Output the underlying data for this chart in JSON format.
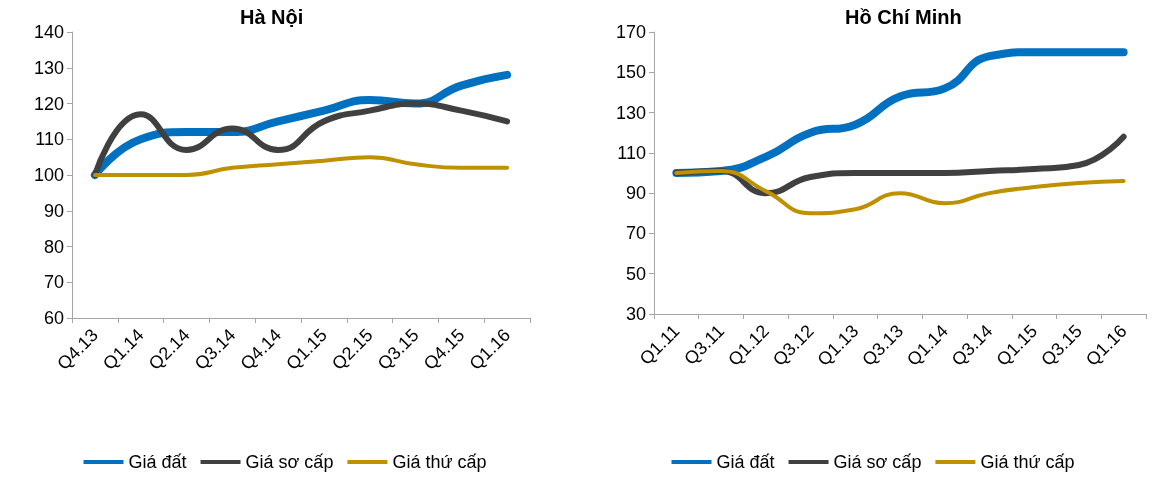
{
  "chart_data": [
    {
      "type": "line",
      "title": "Hà Nội",
      "categories": [
        "Q4.13",
        "Q1.14",
        "Q2.14",
        "Q3.14",
        "Q4.14",
        "Q1.15",
        "Q2.15",
        "Q3.15",
        "Q4.15",
        "Q1.16"
      ],
      "series": [
        {
          "name": "Giá đất",
          "color": "#0070c0",
          "values": [
            100,
            110,
            112,
            112,
            115,
            118,
            121,
            120,
            125,
            128
          ]
        },
        {
          "name": "Giá sơ cấp",
          "color": "#404040",
          "values": [
            100,
            117,
            107,
            113,
            107,
            115,
            118,
            120,
            118,
            115
          ]
        },
        {
          "name": "Giá thứ cấp",
          "color": "#bf9000",
          "values": [
            100,
            100,
            100,
            102,
            103,
            104,
            105,
            103,
            102,
            102
          ]
        }
      ],
      "ylim": [
        60,
        140
      ],
      "yticks": [
        60,
        70,
        80,
        90,
        100,
        110,
        120,
        130,
        140
      ],
      "grid": false,
      "legend": "bottom",
      "marker": "none",
      "line_style": "solid"
    },
    {
      "type": "line",
      "title": "Hồ Chí Minh",
      "categories": [
        "Q1.11",
        "Q3.11",
        "Q1.12",
        "Q3.12",
        "Q1.13",
        "Q3.13",
        "Q1.14",
        "Q3.14",
        "Q1.15",
        "Q3.15",
        "Q1.16"
      ],
      "series": [
        {
          "name": "Giá đất",
          "color": "#0070c0",
          "values": [
            100,
            101,
            108,
            120,
            124,
            138,
            142,
            158,
            160,
            160,
            160
          ]
        },
        {
          "name": "Giá sơ cấp",
          "color": "#404040",
          "values": [
            100,
            101,
            90,
            98,
            100,
            100,
            100,
            101,
            102,
            104,
            118
          ]
        },
        {
          "name": "Giá thứ cấp",
          "color": "#bf9000",
          "values": [
            100,
            101,
            91,
            80,
            82,
            90,
            85,
            90,
            93,
            95,
            96
          ]
        }
      ],
      "ylim": [
        30,
        170
      ],
      "yticks": [
        30,
        50,
        70,
        90,
        110,
        130,
        150,
        170
      ],
      "grid": false,
      "legend": "bottom",
      "marker": "none",
      "line_style": "solid"
    }
  ]
}
